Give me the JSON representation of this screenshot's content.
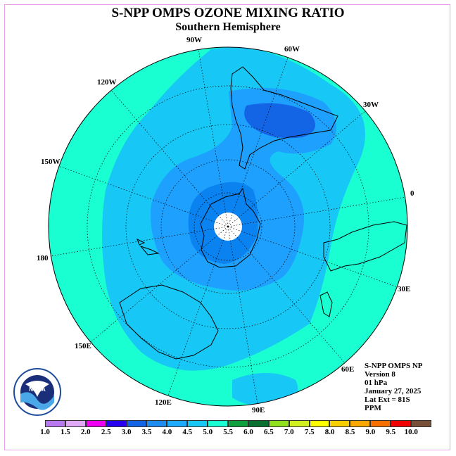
{
  "title": "S-NPP OMPS OZONE MIXING RATIO",
  "subtitle": "Southern Hemisphere",
  "map": {
    "longitude_labels": [
      "90W",
      "60W",
      "30W",
      "0",
      "30E",
      "60E",
      "90E",
      "120E",
      "150E",
      "180",
      "150W",
      "120W"
    ],
    "colors": {
      "level_4_5": "#1ea0ff",
      "level_4_0": "#0a82f0",
      "level_3_5": "#1464e6",
      "level_5_0": "#17c7f5",
      "outer": "#19ffd2",
      "pole_mask": "#ffffff"
    }
  },
  "info": {
    "line1": "S-NPP OMPS NP",
    "line2": "Version 8",
    "line3": "01 hPa",
    "line4": "January 27, 2025",
    "line5": "Lat Ext = 81S",
    "line6": "PPM"
  },
  "logo": {
    "text": "NOAA"
  },
  "colorbar": {
    "ticks": [
      "1.0",
      "1.5",
      "2.0",
      "2.5",
      "3.0",
      "3.5",
      "4.0",
      "4.5",
      "5.0",
      "5.5",
      "6.0",
      "6.5",
      "7.0",
      "7.5",
      "8.0",
      "8.5",
      "9.0",
      "9.5",
      "10.0"
    ],
    "colors": [
      "#b878f0",
      "#e0a8f8",
      "#f000f0",
      "#2800f0",
      "#1464e6",
      "#1e8cf0",
      "#1eaaff",
      "#17c7f5",
      "#19ffd2",
      "#10a040",
      "#087030",
      "#90e020",
      "#d0f020",
      "#ffff00",
      "#f8d000",
      "#f8a800",
      "#f87000",
      "#f00000",
      "#785038"
    ]
  }
}
